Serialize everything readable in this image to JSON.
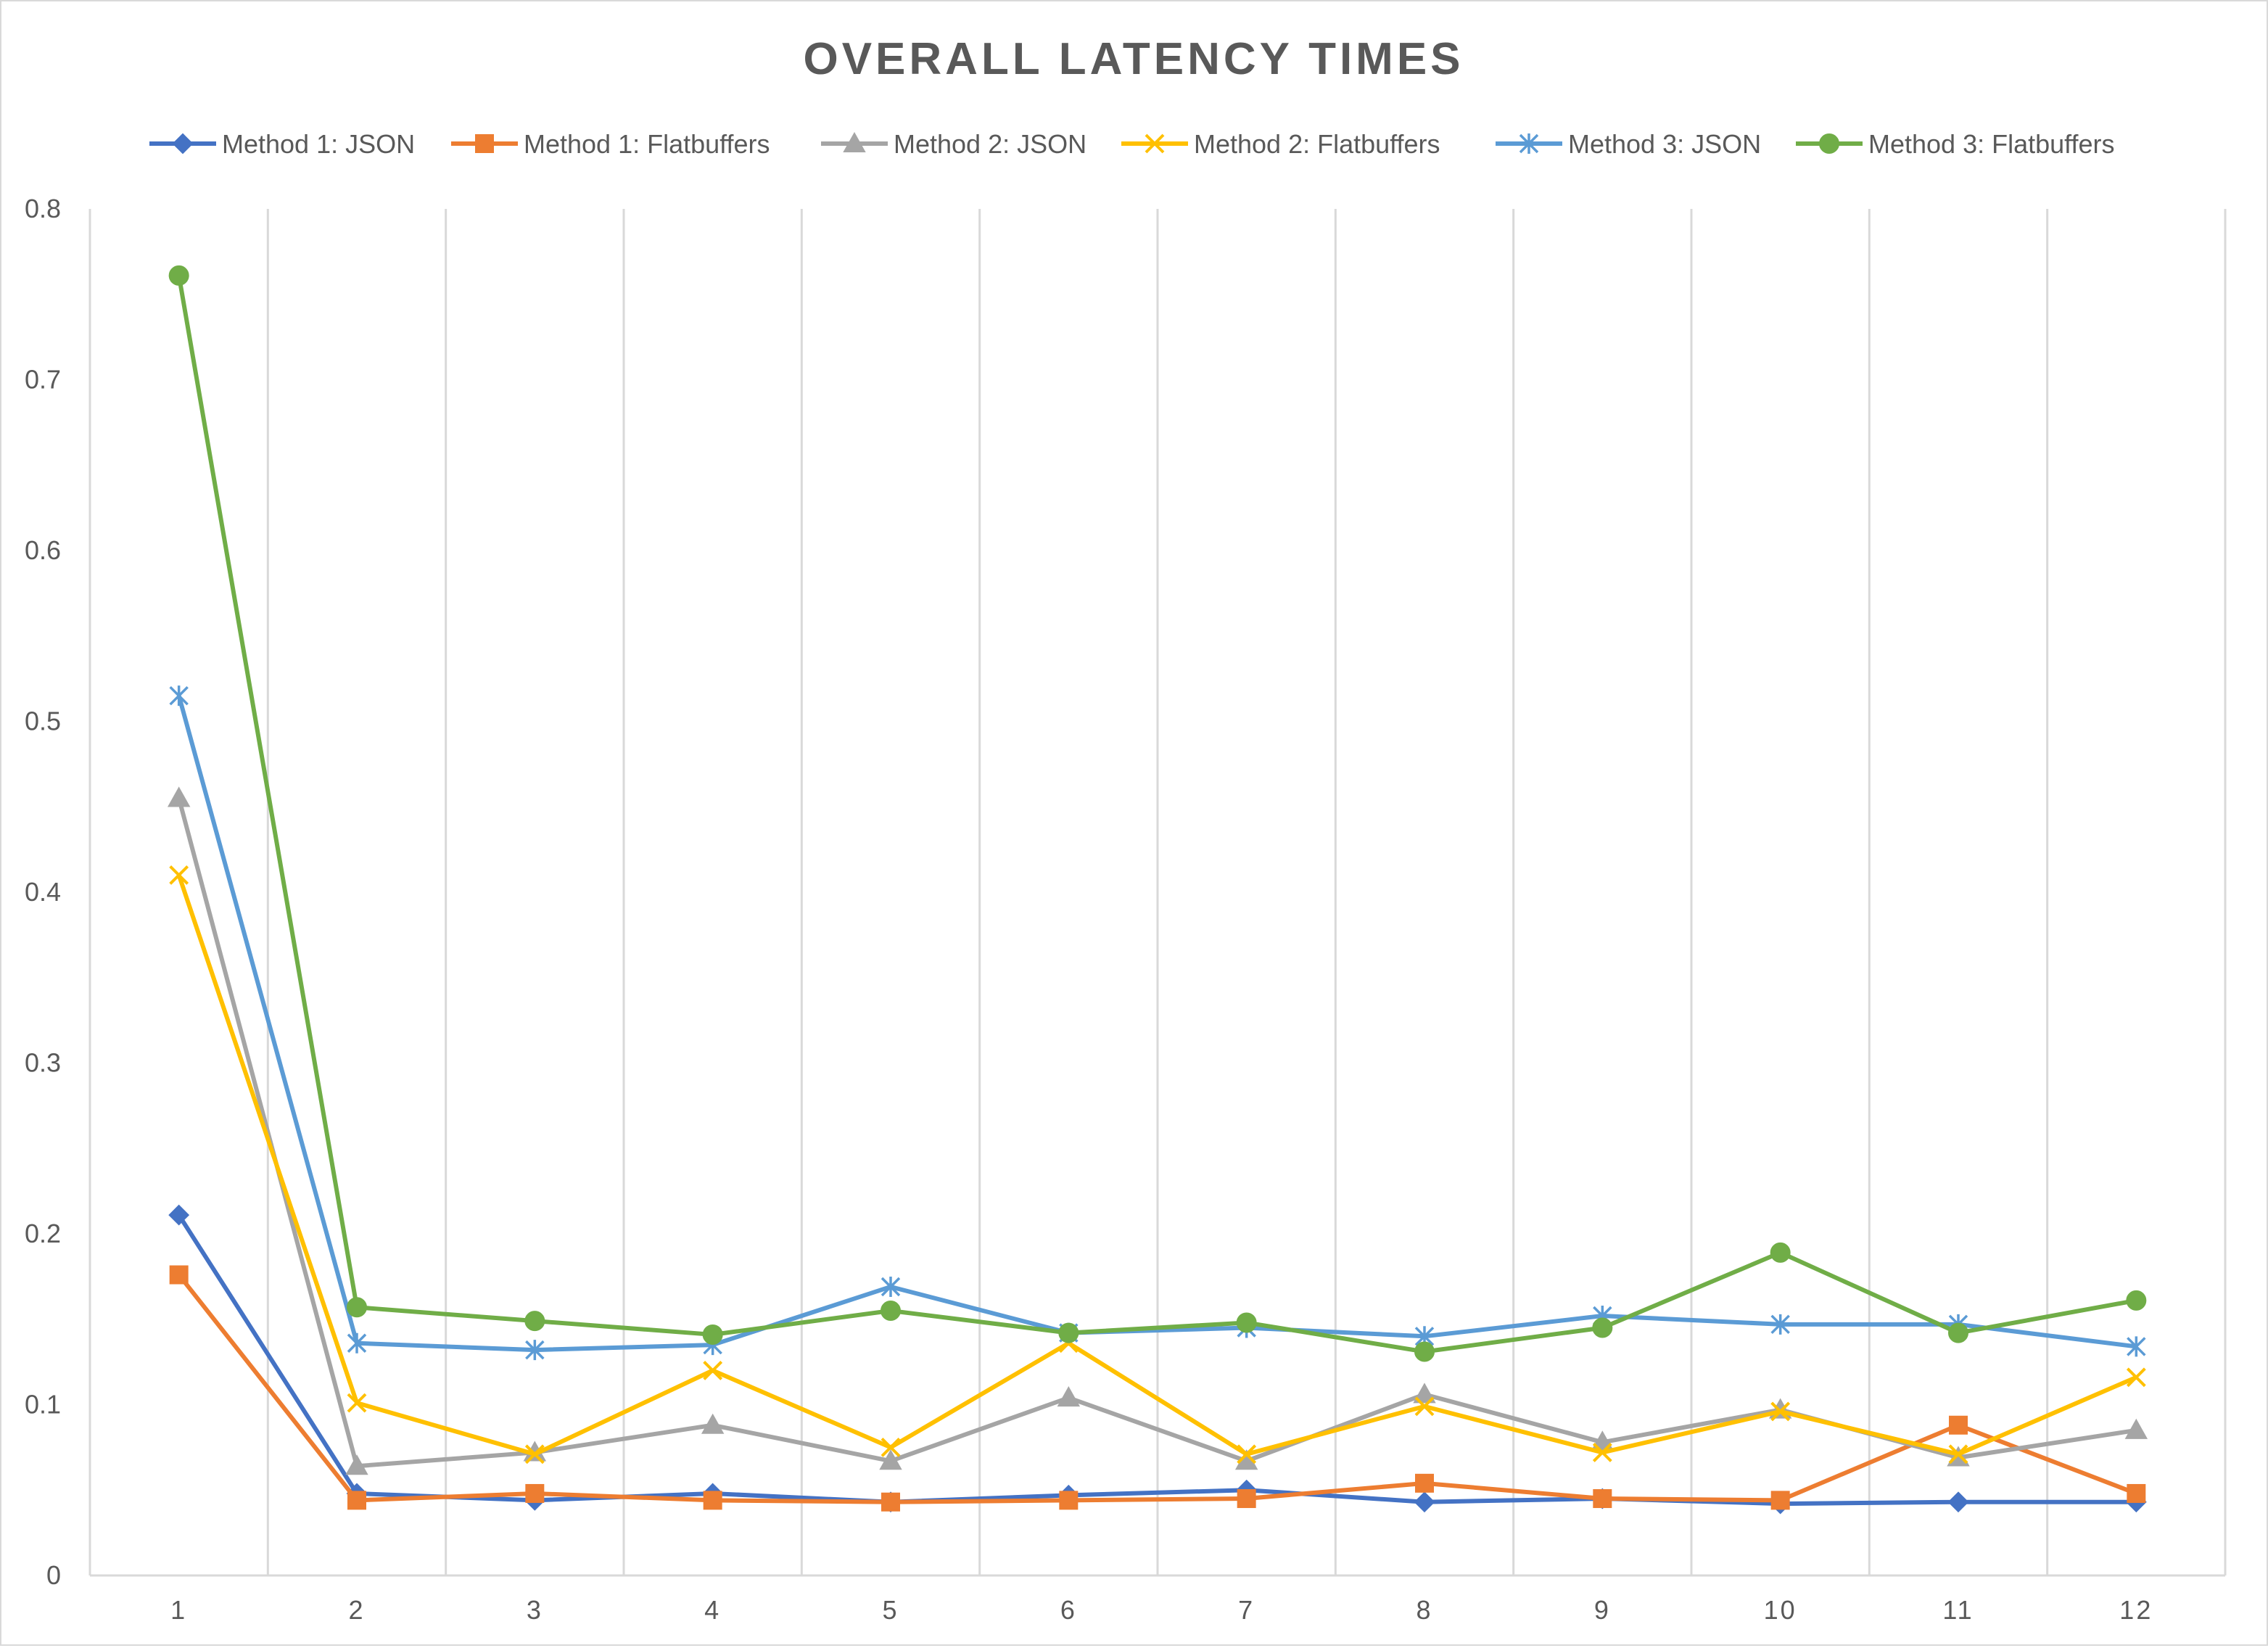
{
  "chart_data": {
    "type": "line",
    "title": "OVERALL LATENCY TIMES",
    "xlabel": "",
    "ylabel": "",
    "categories": [
      "1",
      "2",
      "3",
      "4",
      "5",
      "6",
      "7",
      "8",
      "9",
      "10",
      "11",
      "12"
    ],
    "ylim": [
      0,
      0.8
    ],
    "yticks": [
      "0",
      "0.1",
      "0.2",
      "0.3",
      "0.4",
      "0.5",
      "0.6",
      "0.7",
      "0.8"
    ],
    "grid": "vertical",
    "legend": "top",
    "series": [
      {
        "name": "Method 1: JSON",
        "color": "#4472c4",
        "marker": "diamond",
        "values": [
          0.211,
          0.048,
          0.044,
          0.048,
          0.043,
          0.047,
          0.05,
          0.043,
          0.045,
          0.042,
          0.043,
          0.043
        ]
      },
      {
        "name": "Method 1: Flatbuffers",
        "color": "#ed7d31",
        "marker": "square",
        "values": [
          0.176,
          0.044,
          0.048,
          0.044,
          0.043,
          0.044,
          0.045,
          0.054,
          0.045,
          0.044,
          0.088,
          0.048
        ]
      },
      {
        "name": "Method 2: JSON",
        "color": "#a5a5a5",
        "marker": "triangle",
        "values": [
          0.455,
          0.064,
          0.072,
          0.088,
          0.067,
          0.104,
          0.067,
          0.106,
          0.078,
          0.097,
          0.069,
          0.085
        ]
      },
      {
        "name": "Method 2: Flatbuffers",
        "color": "#ffc000",
        "marker": "x",
        "values": [
          0.41,
          0.101,
          0.071,
          0.12,
          0.075,
          0.136,
          0.071,
          0.099,
          0.072,
          0.096,
          0.071,
          0.116
        ]
      },
      {
        "name": "Method 3: JSON",
        "color": "#5b9bd5",
        "marker": "star",
        "values": [
          0.515,
          0.136,
          0.132,
          0.135,
          0.169,
          0.142,
          0.145,
          0.14,
          0.152,
          0.147,
          0.147,
          0.134
        ]
      },
      {
        "name": "Method 3: Flatbuffers",
        "color": "#70ad47",
        "marker": "circle",
        "values": [
          0.761,
          0.157,
          0.149,
          0.141,
          0.155,
          0.142,
          0.148,
          0.131,
          0.145,
          0.189,
          0.142,
          0.161
        ]
      }
    ]
  }
}
